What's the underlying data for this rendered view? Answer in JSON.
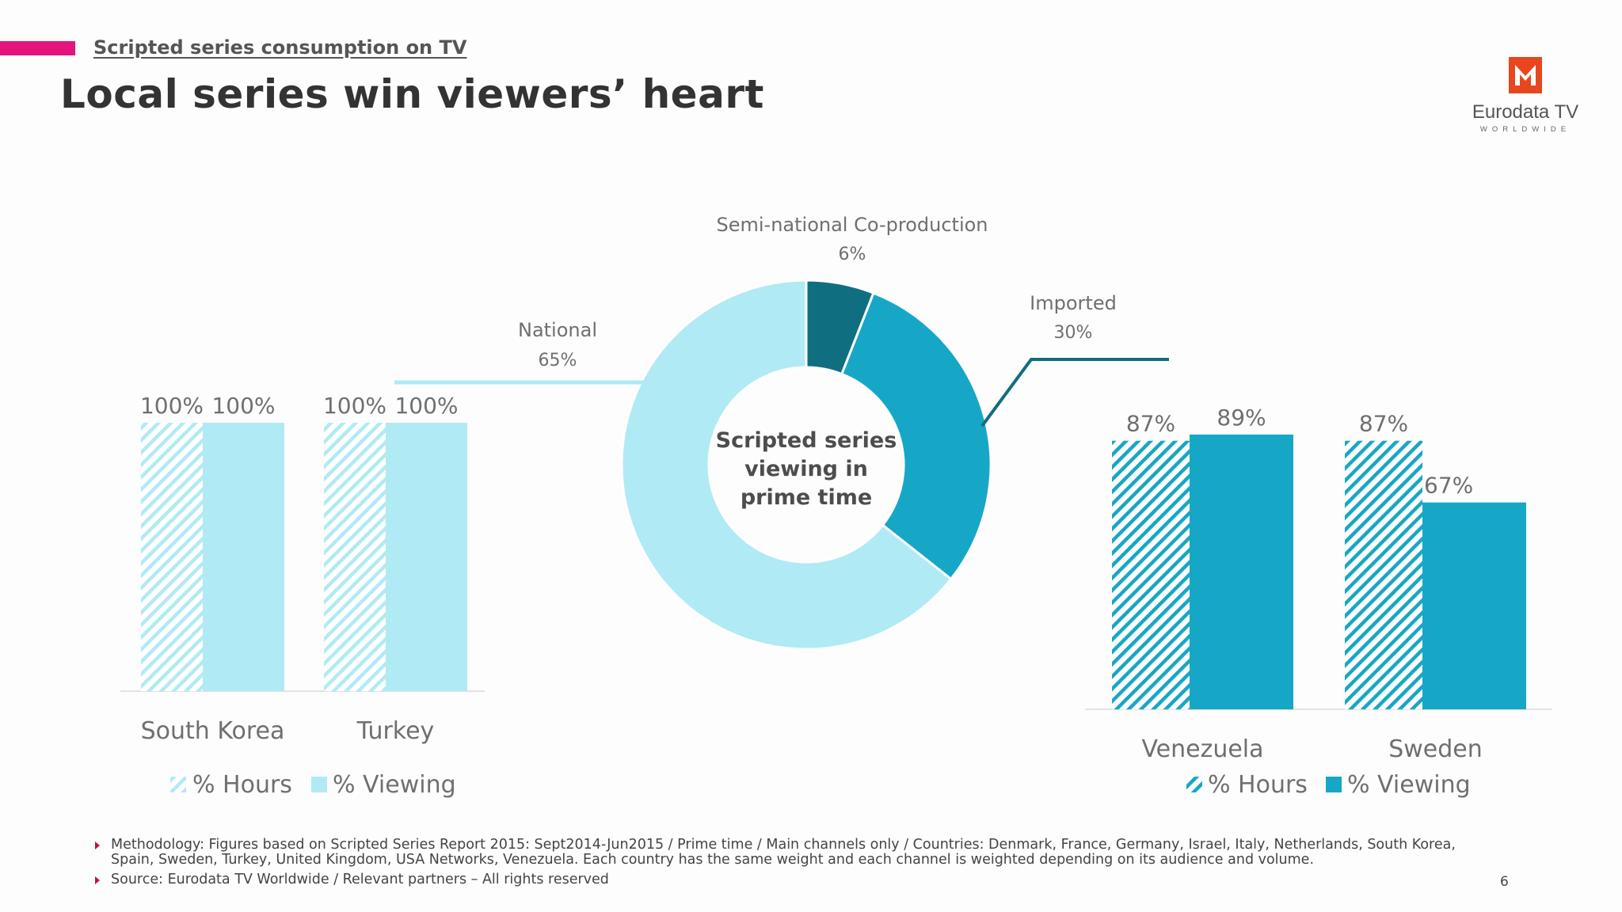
{
  "header": {
    "subtitle": "Scripted series consumption on TV",
    "title": "Local series win viewers’ heart"
  },
  "logo": {
    "name": "Eurodata TV",
    "tagline": "WORLDWIDE",
    "icon": "m-logo-icon",
    "color": "#e8461e"
  },
  "colors": {
    "accent": "#e3147b",
    "light_cyan": "#b0eaf5",
    "mid_cyan": "#17a7c6",
    "dark_teal": "#0f6f80",
    "label_grey": "#6f6f6f"
  },
  "chart_data": [
    {
      "type": "bar",
      "categories": [
        "South Korea",
        "Turkey"
      ],
      "series": [
        {
          "name": "% Hours",
          "values": [
            100,
            100
          ],
          "labels": [
            "100%",
            "100%"
          ],
          "pattern": "hatched",
          "color": "#b0eaf5"
        },
        {
          "name": "% Viewing",
          "values": [
            100,
            100
          ],
          "labels": [
            "100%",
            "100%"
          ],
          "pattern": "solid",
          "color": "#b0eaf5"
        }
      ],
      "ylim": [
        0,
        100
      ],
      "legend_placement": "bottom"
    },
    {
      "type": "pie",
      "center_label": "Scripted series viewing in prime time",
      "center_lines": [
        "Scripted series",
        "viewing in",
        "prime time"
      ],
      "slices": [
        {
          "name": "Semi-national Co-production",
          "value": 6,
          "label": "6%",
          "color": "#0f6f80"
        },
        {
          "name": "Imported",
          "value": 30,
          "label": "30%",
          "color": "#17a7c6"
        },
        {
          "name": "National",
          "value": 65,
          "label": "65%",
          "color": "#b0eaf5"
        }
      ]
    },
    {
      "type": "bar",
      "categories": [
        "Venezuela",
        "Sweden"
      ],
      "series": [
        {
          "name": "% Hours",
          "values": [
            87,
            87
          ],
          "labels": [
            "87%",
            "87%"
          ],
          "pattern": "hatched",
          "color": "#17a7c6"
        },
        {
          "name": "% Viewing",
          "values": [
            89,
            67
          ],
          "labels": [
            "89%",
            "67%"
          ],
          "pattern": "solid",
          "color": "#17a7c6"
        }
      ],
      "ylim": [
        0,
        100
      ],
      "legend_placement": "bottom"
    }
  ],
  "footer": {
    "methodology": "Methodology: Figures based on Scripted Series Report 2015: Sept2014-Jun2015 / Prime time / Main channels only / Countries: Denmark, France, Germany, Israel, Italy, Netherlands, South Korea, Spain, Sweden, Turkey, United Kingdom, USA Networks, Venezuela. Each country has the same weight and each channel is weighted depending on its audience and volume.",
    "source": "Source: Eurodata TV Worldwide / Relevant partners – All rights reserved"
  },
  "page_number": "6"
}
